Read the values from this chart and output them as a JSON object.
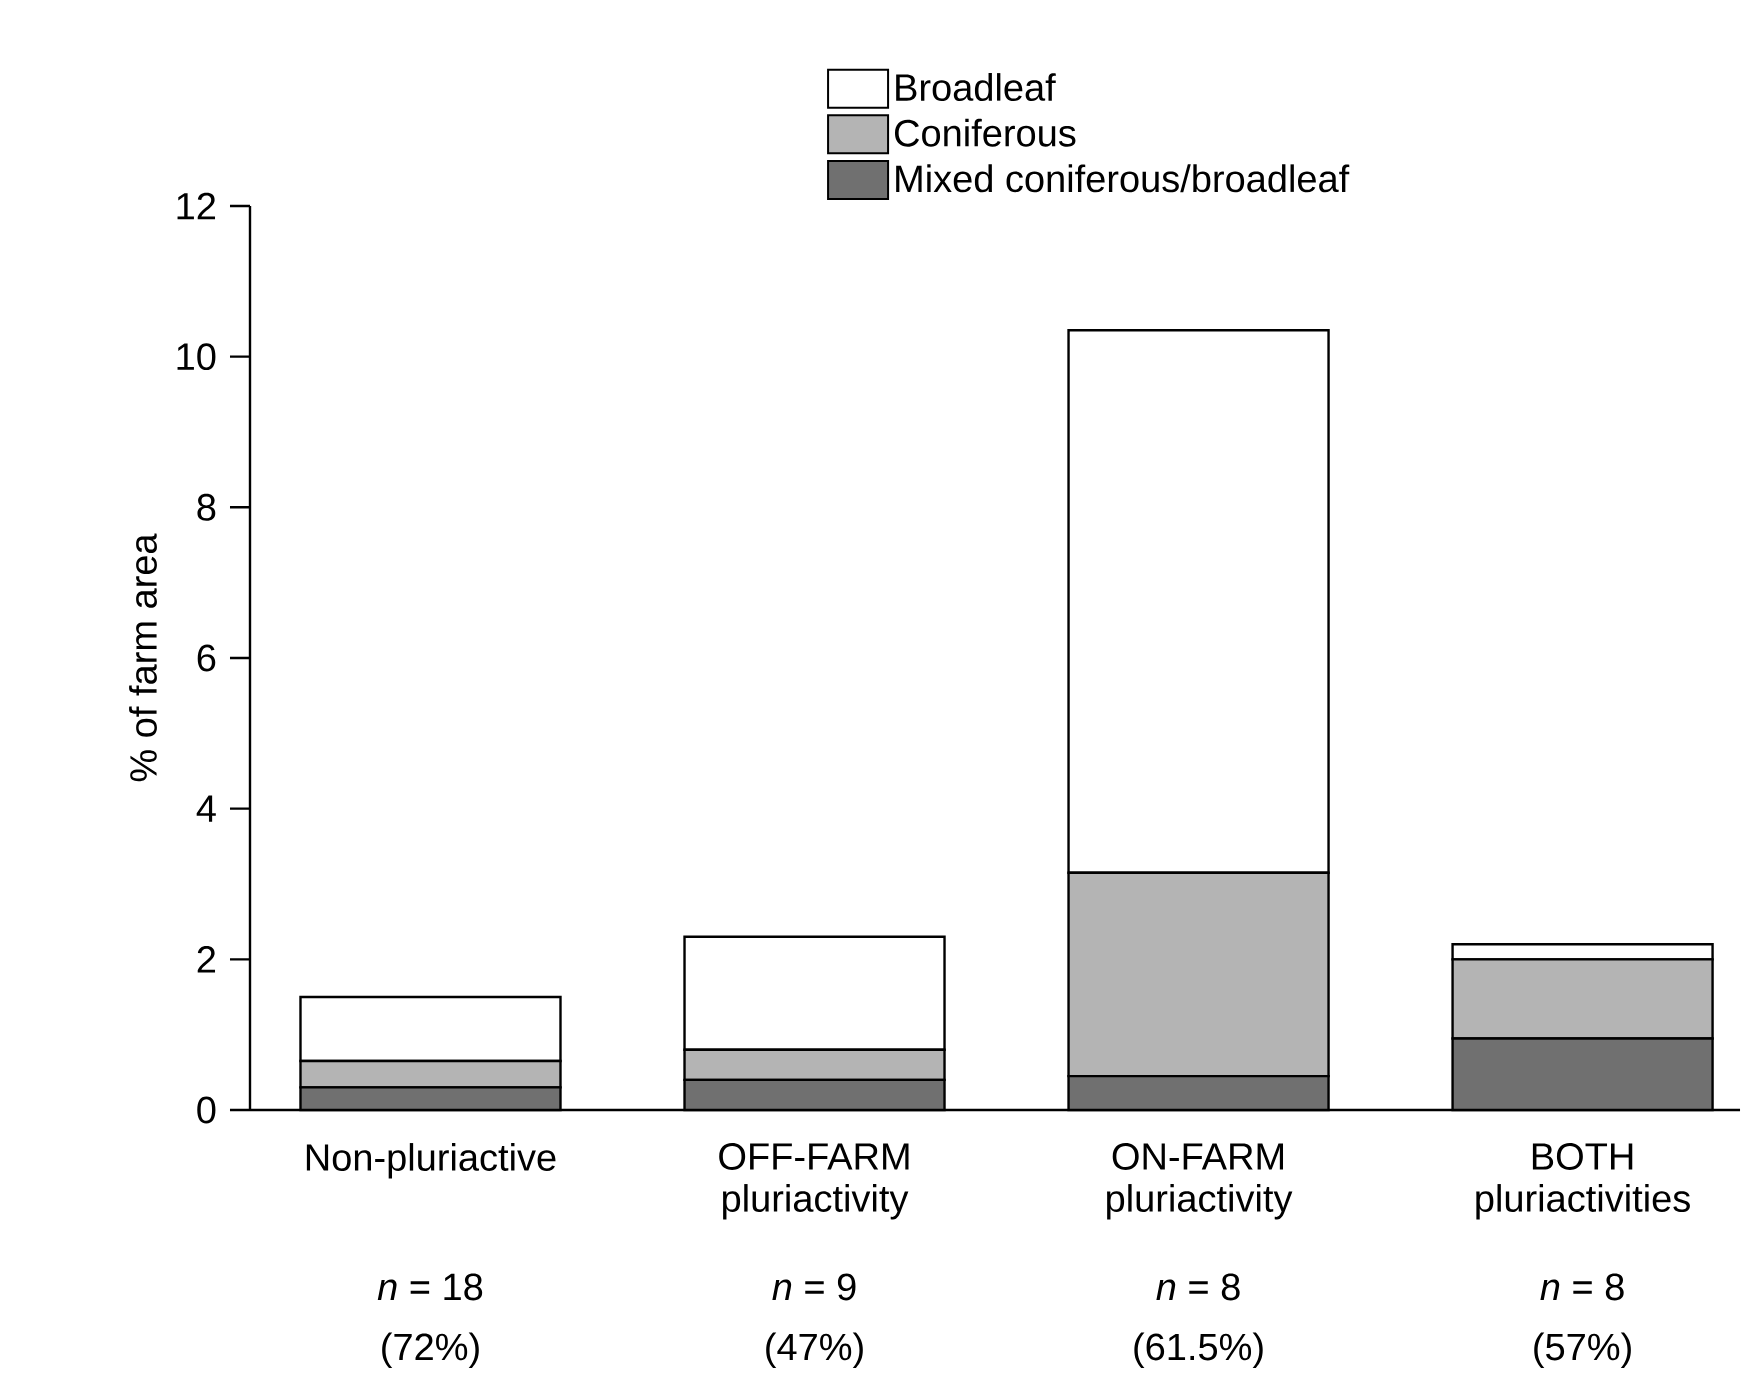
{
  "chart_data": {
    "type": "bar",
    "stacked": true,
    "ylabel": "% of farm area",
    "categories": [
      "Non-pluriactive",
      "OFF-FARM pluriactivity",
      "ON-FARM pluriactivity",
      "BOTH pluriactivities"
    ],
    "series": [
      {
        "name": "Mixed coniferous/broadleaf",
        "color": "#707070",
        "values": [
          0.3,
          0.4,
          0.45,
          0.95
        ]
      },
      {
        "name": "Coniferous",
        "color": "#b4b4b4",
        "values": [
          0.35,
          0.4,
          2.7,
          1.05
        ]
      },
      {
        "name": "Broadleaf",
        "color": "#ffffff",
        "values": [
          0.85,
          1.5,
          7.2,
          0.2
        ]
      }
    ],
    "ylim": [
      0,
      12
    ],
    "yticks": [
      0,
      2,
      4,
      6,
      8,
      10,
      12
    ],
    "legend": "top",
    "annotations": [
      "*n* = 18",
      "(72%)",
      "*n* = 9",
      "(47%)",
      "*n* = 8",
      "(61.5%)",
      "*n* = 8",
      "(57%)"
    ]
  }
}
